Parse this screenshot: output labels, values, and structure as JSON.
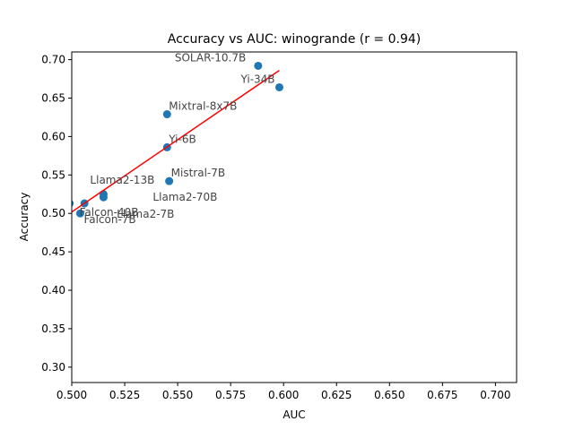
{
  "chart_data": {
    "type": "scatter",
    "title": "Accuracy vs AUC: winogrande (r = 0.94)",
    "xlabel": "AUC",
    "ylabel": "Accuracy",
    "xlim": [
      0.5,
      0.71
    ],
    "ylim": [
      0.28,
      0.71
    ],
    "xticks": [
      "0.500",
      "0.525",
      "0.550",
      "0.575",
      "0.600",
      "0.625",
      "0.650",
      "0.675",
      "0.700"
    ],
    "yticks": [
      "0.30",
      "0.35",
      "0.40",
      "0.45",
      "0.50",
      "0.55",
      "0.60",
      "0.65",
      "0.70"
    ],
    "grid": false,
    "point_color": "#1f77b4",
    "fit_color": "#ff0000",
    "points": [
      {
        "label": "SOLAR-10.7B",
        "x": 0.588,
        "y": 0.692
      },
      {
        "label": "Yi-34B",
        "x": 0.598,
        "y": 0.664
      },
      {
        "label": "Mixtral-8x7B",
        "x": 0.545,
        "y": 0.629
      },
      {
        "label": "Yi-6B",
        "x": 0.545,
        "y": 0.586
      },
      {
        "label": "Mistral-7B",
        "x": 0.546,
        "y": 0.542
      },
      {
        "label": "Llama2-13B",
        "x": 0.515,
        "y": 0.525
      },
      {
        "label": "Llama2-70B",
        "x": 0.515,
        "y": 0.521
      },
      {
        "label": "Llama2-7B",
        "x": 0.506,
        "y": 0.513
      },
      {
        "label": "Falcon-40B",
        "x": 0.499,
        "y": 0.513
      },
      {
        "label": "Falcon-7B",
        "x": 0.504,
        "y": 0.5
      }
    ],
    "fit_line": {
      "x": [
        0.499,
        0.598
      ],
      "y": [
        0.5,
        0.686
      ]
    }
  }
}
